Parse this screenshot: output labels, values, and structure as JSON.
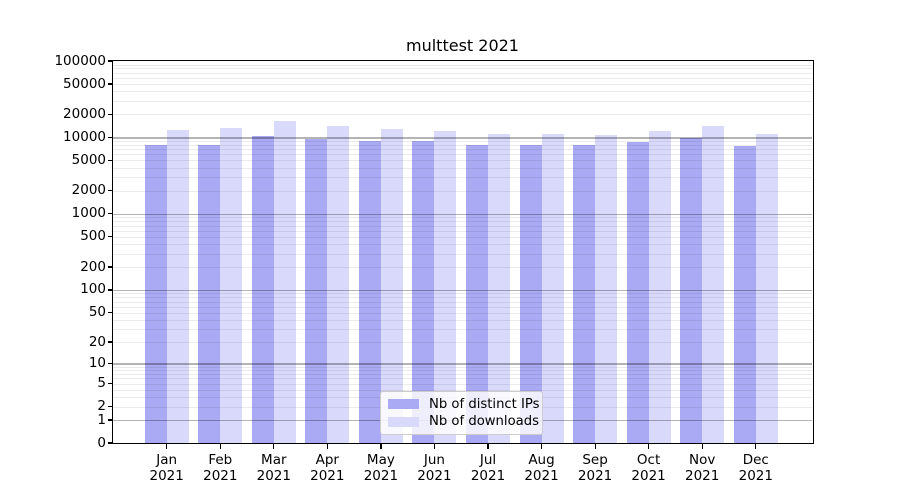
{
  "chart_data": {
    "type": "bar",
    "title": "multtest 2021",
    "categories": [
      {
        "month": "Jan",
        "year": "2021"
      },
      {
        "month": "Feb",
        "year": "2021"
      },
      {
        "month": "Mar",
        "year": "2021"
      },
      {
        "month": "Apr",
        "year": "2021"
      },
      {
        "month": "May",
        "year": "2021"
      },
      {
        "month": "Jun",
        "year": "2021"
      },
      {
        "month": "Jul",
        "year": "2021"
      },
      {
        "month": "Aug",
        "year": "2021"
      },
      {
        "month": "Sep",
        "year": "2021"
      },
      {
        "month": "Oct",
        "year": "2021"
      },
      {
        "month": "Nov",
        "year": "2021"
      },
      {
        "month": "Dec",
        "year": "2021"
      }
    ],
    "series": [
      {
        "name": "Nb of distinct IPs",
        "color": "#a9a9f4",
        "values": [
          8000,
          7850,
          10600,
          9600,
          8850,
          8950,
          7950,
          8050,
          8000,
          8600,
          9700,
          7700
        ]
      },
      {
        "name": "Nb of downloads",
        "color": "#d9d9fb",
        "values": [
          12600,
          13350,
          16350,
          14300,
          12850,
          12200,
          11250,
          11050,
          10800,
          12200,
          14150,
          11050
        ]
      }
    ],
    "y_axis": {
      "scale": "log1p",
      "ticks": [
        0,
        1,
        2,
        5,
        10,
        20,
        50,
        100,
        200,
        500,
        1000,
        2000,
        5000,
        10000,
        20000,
        50000,
        100000
      ],
      "ylim": [
        0,
        100000
      ]
    },
    "grid": {
      "minor_color": "#ebebeb",
      "major_color": "#b4b4b4"
    },
    "legend": {
      "position": "bottom-center"
    }
  }
}
